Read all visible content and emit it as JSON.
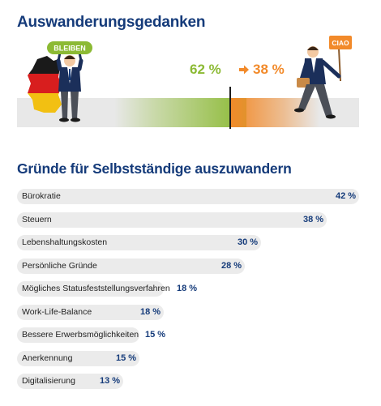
{
  "header": {
    "title": "Auswanderungsgedanken",
    "stay_sign": "BLEIBEN",
    "leave_sign": "CIAO",
    "stay_percent": "62 %",
    "leave_percent": "38 %"
  },
  "chart_data": [
    {
      "type": "bar",
      "categories": [
        "Bleiben",
        "Auswandern"
      ],
      "values": [
        62,
        38
      ],
      "unit": "%"
    },
    {
      "type": "bar",
      "orientation": "horizontal",
      "title": "Gründe für Selbstständige auszuwandern",
      "categories": [
        "Bürokratie",
        "Steuern",
        "Lebenshaltungskosten",
        "Persönliche Gründe",
        "Mögliches Statusfeststellungsverfahren",
        "Work-Life-Balance",
        "Bessere Erwerbsmöglichkeiten",
        "Anerkennung",
        "Digitalisierung"
      ],
      "values": [
        42,
        38,
        30,
        28,
        18,
        18,
        15,
        15,
        13
      ],
      "value_labels": [
        "42 %",
        "38 %",
        "30 %",
        "28 %",
        "18 %",
        "18 %",
        "15 %",
        "15 %",
        "13 %"
      ],
      "xlim": [
        0,
        42
      ],
      "grid": false,
      "colors": {
        "bar": "#ebebeb",
        "value": "#153b7a",
        "title": "#153b7a"
      }
    }
  ],
  "colors": {
    "title": "#153b7a",
    "stay_green": "#8cba34",
    "leave_orange": "#f28a2a",
    "track": "#e8e8e8"
  }
}
